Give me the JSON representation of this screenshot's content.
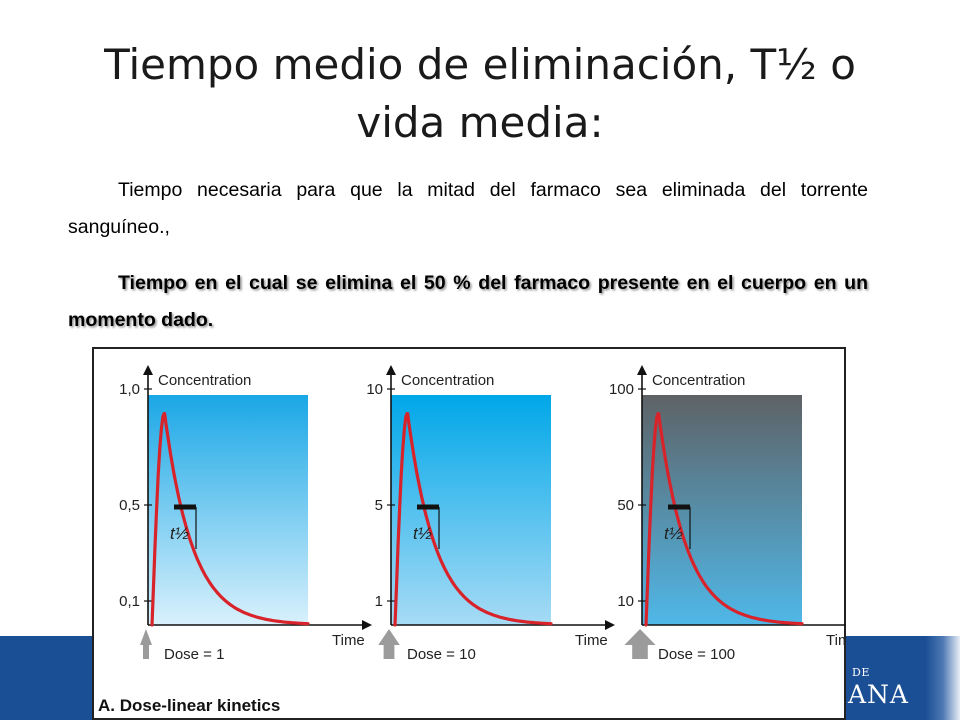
{
  "title": "Tiempo medio de eliminación, T½ o vida media:",
  "paragraph1": "Tiempo necesaria para que la mitad del farmaco sea eliminada del torrente sanguíneo.,",
  "paragraph2": "Tiempo en el cual se elimina el 50 % del farmaco presente en el cuerpo en un momento dado.",
  "logo": {
    "small": "DE",
    "big": "ANA"
  },
  "figure_caption": "A. Dose-linear kinetics",
  "colors": {
    "curve": "#d8232a",
    "footer": "#1b4f95"
  },
  "chart_data": [
    {
      "type": "line",
      "ylabel": "Concentration",
      "xlabel": "Time",
      "yticks": [
        "1,0",
        "0,5",
        "0,1"
      ],
      "dose_label": "Dose = 1",
      "half_life_label": "t½",
      "background": [
        "#1aa7e6",
        "#d9f1fc"
      ],
      "ylim": [
        0,
        1.0
      ],
      "peak": 0.9,
      "half_life_level": 0.5
    },
    {
      "type": "line",
      "ylabel": "Concentration",
      "xlabel": "Time",
      "yticks": [
        "10",
        "5",
        "1"
      ],
      "dose_label": "Dose = 10",
      "half_life_label": "t½",
      "background": [
        "#00a7e8",
        "#a7dbf5"
      ],
      "ylim": [
        0,
        10
      ],
      "peak": 9,
      "half_life_level": 5
    },
    {
      "type": "line",
      "ylabel": "Concentration",
      "xlabel": "Time",
      "yticks": [
        "100",
        "50",
        "10"
      ],
      "dose_label": "Dose = 100",
      "half_life_label": "t½",
      "background": [
        "#5e6266",
        "#4fb8e8"
      ],
      "ylim": [
        0,
        100
      ],
      "peak": 90,
      "half_life_level": 50
    }
  ]
}
